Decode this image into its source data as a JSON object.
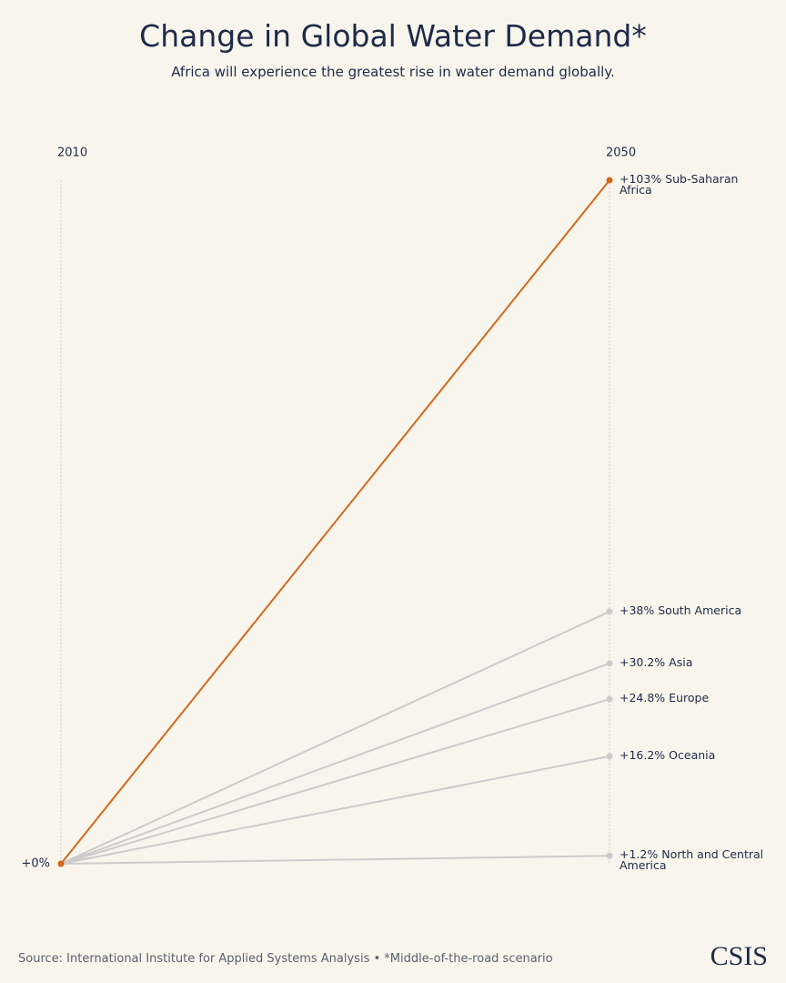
{
  "chart_data": {
    "type": "slope",
    "title": "Change in Global Water Demand*",
    "subtitle": "Africa will experience the greatest rise in water demand globally.",
    "categories": [
      "2010",
      "2050"
    ],
    "ylim": [
      0,
      103
    ],
    "yticks": [
      {
        "value": 0,
        "label": "+0%"
      }
    ],
    "series": [
      {
        "name": "Sub-Saharan Africa",
        "color": "#d4691e",
        "values": [
          0,
          103
        ],
        "value_labels": [
          null,
          "+103%"
        ]
      },
      {
        "name": "South America",
        "color": "#cccccc",
        "values": [
          0,
          38
        ],
        "value_labels": [
          null,
          "+38%"
        ]
      },
      {
        "name": "Asia",
        "color": "#cccccc",
        "values": [
          0,
          30.2
        ],
        "value_labels": [
          null,
          "+30.2%"
        ]
      },
      {
        "name": "Europe",
        "color": "#cccccc",
        "values": [
          0,
          24.8
        ],
        "value_labels": [
          null,
          "+24.8%"
        ]
      },
      {
        "name": "Oceania",
        "color": "#cccccc",
        "values": [
          0,
          16.2
        ],
        "value_labels": [
          null,
          "+16.2%"
        ]
      },
      {
        "name": "North and Central America",
        "color": "#cccccc",
        "values": [
          0,
          1.2
        ],
        "value_labels": [
          null,
          "+1.2%"
        ]
      }
    ],
    "source": "Source: International Institute for Applied Systems Analysis • *Middle-of-the-road scenario"
  },
  "branding": "CSIS"
}
